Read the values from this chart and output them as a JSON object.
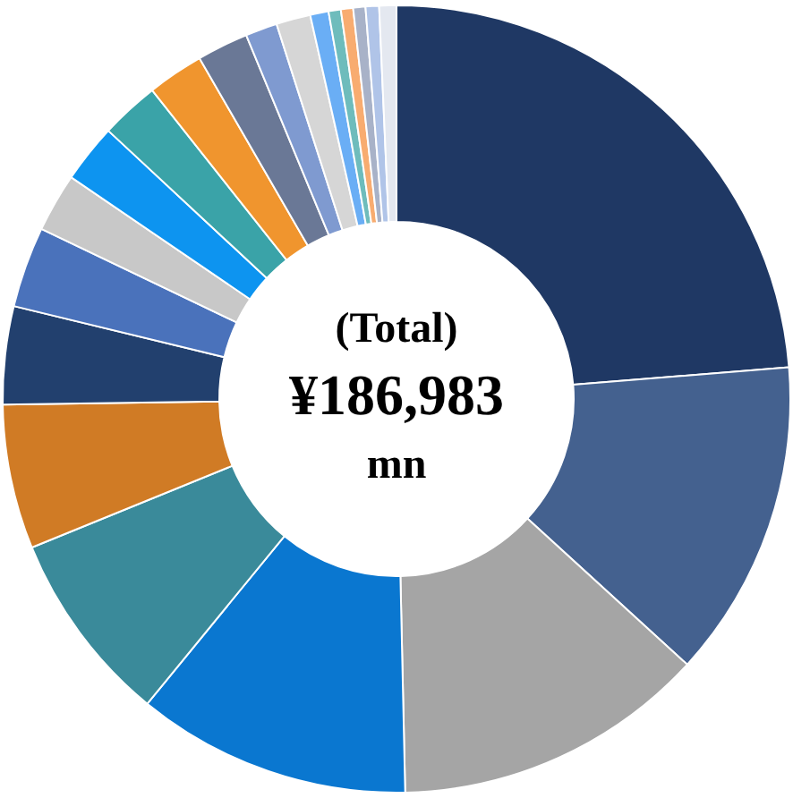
{
  "chart_data": {
    "type": "donut",
    "categories": [
      null,
      null,
      null,
      null,
      null,
      null,
      null,
      null,
      null,
      null,
      null,
      null,
      null,
      null,
      null,
      null,
      null,
      null,
      null,
      null,
      null
    ],
    "values": [
      23.6,
      13,
      12.8,
      11.2,
      7.9,
      5.9,
      4,
      3.3,
      2.4,
      2.4,
      2.4,
      2.3,
      2.1,
      1.3,
      1.4,
      0.75,
      0.5,
      0.5,
      0.5,
      0.55,
      0.7
    ],
    "colors": [
      "#1f3864",
      "#44618f",
      "#a5a5a5",
      "#0a77d0",
      "#3a8a9a",
      "#d07b25",
      "#22406e",
      "#4a72bb",
      "#c8c8c8",
      "#0d94f0",
      "#3aa3a8",
      "#f0952e",
      "#6a7896",
      "#7f9ad0",
      "#d6d6d6",
      "#6aaef5",
      "#6ebcbc",
      "#f8ac70",
      "#a8b2c8",
      "#b0c4e8",
      "#e4e8f0"
    ],
    "legend": false,
    "annotations": [
      "(Total)",
      "¥186,983",
      "mn"
    ]
  }
}
